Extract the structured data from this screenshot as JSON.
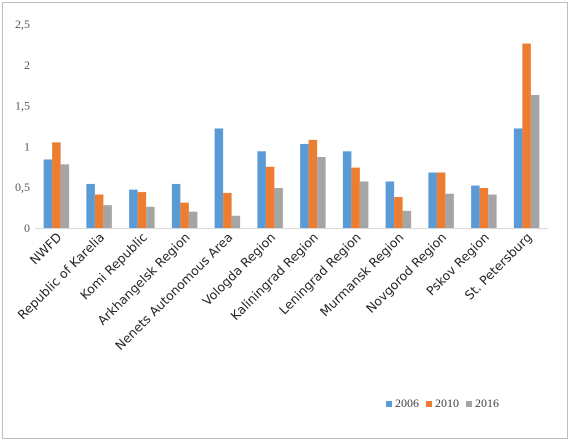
{
  "chart_data": {
    "type": "bar",
    "categories": [
      "NWFD",
      "Republic of Karelia",
      "Komi Republic",
      "Arkhangelsk Region",
      "Nenets Autonomous Area",
      "Vologda Region",
      "Kaliningrad Region",
      "Leningrad Region",
      "Murmansk Region",
      "Novgorod Region",
      "Pskov Region",
      "St. Petersburg"
    ],
    "series": [
      {
        "name": "2006",
        "color": "#5b9bd5",
        "values": [
          0.84,
          0.54,
          0.47,
          0.54,
          1.22,
          0.94,
          1.03,
          0.94,
          0.57,
          0.68,
          0.52,
          1.22
        ]
      },
      {
        "name": "2010",
        "color": "#ed7d31",
        "values": [
          1.05,
          0.41,
          0.44,
          0.31,
          0.43,
          0.75,
          1.08,
          0.74,
          0.38,
          0.68,
          0.49,
          2.26
        ]
      },
      {
        "name": "2016",
        "color": "#a5a5a5",
        "values": [
          0.78,
          0.28,
          0.26,
          0.2,
          0.15,
          0.49,
          0.87,
          0.57,
          0.21,
          0.42,
          0.41,
          1.63
        ]
      }
    ],
    "ylim": [
      0,
      2.5
    ],
    "yticks": [
      "0",
      "0,5",
      "1",
      "1,5",
      "2",
      "2,5"
    ],
    "grid": false,
    "legend": "bottom-right",
    "title": "",
    "xlabel": "",
    "ylabel": ""
  }
}
